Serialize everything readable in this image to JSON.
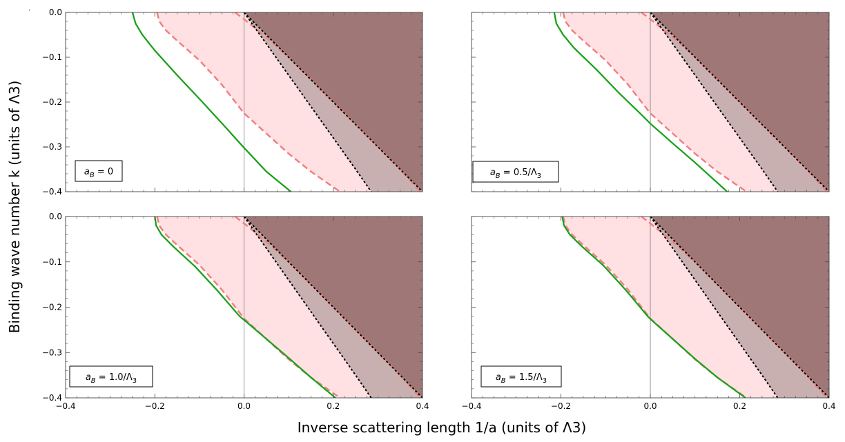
{
  "figure": {
    "xlabel": "Inverse scattering length 1/a (units of Λ3)",
    "ylabel": "Binding wave number k (units of Λ3)",
    "stray_mark": "ᵣ"
  },
  "colors": {
    "green_curve": "#1aa11a",
    "salmon_dashed": "#f08080",
    "pink_band": "#ffe0e3",
    "dark_region": "#9f7777",
    "mid_region": "#c8b0b0",
    "dotted": "#000000"
  },
  "chart_data": [
    {
      "type": "area",
      "panel": "top-left",
      "legend": "a_B = 0",
      "legend_parts": [
        "a",
        "B",
        " = 0"
      ],
      "xlim": [
        -0.4,
        0.4
      ],
      "ylim": [
        -0.4,
        0.0
      ],
      "xticks": [
        "−0.4",
        "−0.2",
        "0.0",
        "0.2",
        "0.4"
      ],
      "yticks": [
        "0.0",
        "−0.1",
        "−0.2",
        "−0.3",
        "−0.4"
      ],
      "show_xticklabels": false,
      "show_yticklabels": true,
      "green_curve": {
        "x": [
          -0.25,
          -0.243,
          -0.228,
          -0.2,
          -0.15,
          -0.1,
          -0.05,
          0.0,
          0.05,
          0.105
        ],
        "y": [
          0.0,
          -0.025,
          -0.05,
          -0.085,
          -0.14,
          -0.193,
          -0.247,
          -0.302,
          -0.355,
          -0.4
        ]
      },
      "salmon_outer": {
        "x": [
          -0.195,
          -0.19,
          -0.175,
          -0.15,
          -0.1,
          -0.05,
          0.0,
          0.05,
          0.1,
          0.15,
          0.215
        ],
        "y": [
          0.0,
          -0.02,
          -0.04,
          -0.063,
          -0.107,
          -0.161,
          -0.225,
          -0.27,
          -0.315,
          -0.355,
          -0.4
        ]
      },
      "salmon_inner": {
        "x": [
          -0.02,
          0.0,
          0.05,
          0.1,
          0.15,
          0.2,
          0.25,
          0.3,
          0.35,
          0.395
        ],
        "y": [
          0.0,
          -0.015,
          -0.055,
          -0.1,
          -0.15,
          -0.2,
          -0.25,
          -0.3,
          -0.35,
          -0.4
        ]
      },
      "dotted_steep": {
        "x": [
          0.0,
          0.05,
          0.1,
          0.15,
          0.2,
          0.25,
          0.285
        ],
        "y": [
          0.0,
          -0.07,
          -0.14,
          -0.21,
          -0.28,
          -0.35,
          -0.4
        ]
      },
      "dotted_diag": {
        "x": [
          0.0,
          0.1,
          0.2,
          0.3,
          0.4
        ],
        "y": [
          0.0,
          -0.1,
          -0.2,
          -0.3,
          -0.4
        ]
      }
    },
    {
      "type": "area",
      "panel": "top-right",
      "legend": "a_B = 0.5/Λ3",
      "legend_parts": [
        "a",
        "B",
        " = 0.5/Λ",
        "3"
      ],
      "xlim": [
        -0.4,
        0.4
      ],
      "ylim": [
        -0.4,
        0.0
      ],
      "xticks": [
        "−0.4",
        "−0.2",
        "0.0",
        "0.2",
        "0.4"
      ],
      "yticks": [
        "0.0",
        "−0.1",
        "−0.2",
        "−0.3",
        "−0.4"
      ],
      "show_xticklabels": false,
      "show_yticklabels": false,
      "green_curve": {
        "x": [
          -0.215,
          -0.21,
          -0.195,
          -0.17,
          -0.12,
          -0.07,
          -0.02,
          0.0,
          0.05,
          0.1,
          0.172
        ],
        "y": [
          0.0,
          -0.025,
          -0.05,
          -0.08,
          -0.128,
          -0.18,
          -0.228,
          -0.248,
          -0.292,
          -0.335,
          -0.4
        ]
      },
      "salmon_outer": {
        "x": [
          -0.195,
          -0.19,
          -0.175,
          -0.15,
          -0.1,
          -0.05,
          0.0,
          0.05,
          0.1,
          0.15,
          0.215
        ],
        "y": [
          0.0,
          -0.02,
          -0.04,
          -0.063,
          -0.107,
          -0.161,
          -0.225,
          -0.27,
          -0.315,
          -0.355,
          -0.4
        ]
      },
      "salmon_inner": {
        "x": [
          -0.02,
          0.0,
          0.05,
          0.1,
          0.15,
          0.2,
          0.25,
          0.3,
          0.35,
          0.395
        ],
        "y": [
          0.0,
          -0.015,
          -0.055,
          -0.1,
          -0.15,
          -0.2,
          -0.25,
          -0.3,
          -0.35,
          -0.4
        ]
      },
      "dotted_steep": {
        "x": [
          0.0,
          0.05,
          0.1,
          0.15,
          0.2,
          0.25,
          0.285
        ],
        "y": [
          0.0,
          -0.07,
          -0.14,
          -0.21,
          -0.28,
          -0.35,
          -0.4
        ]
      },
      "dotted_diag": {
        "x": [
          0.0,
          0.1,
          0.2,
          0.3,
          0.4
        ],
        "y": [
          0.0,
          -0.1,
          -0.2,
          -0.3,
          -0.4
        ]
      }
    },
    {
      "type": "area",
      "panel": "bottom-left",
      "legend": "a_B = 1.0/Λ3",
      "legend_parts": [
        "a",
        "B",
        " = 1.0/Λ",
        "3"
      ],
      "xlim": [
        -0.4,
        0.4
      ],
      "ylim": [
        -0.4,
        0.0
      ],
      "xticks": [
        "−0.4",
        "−0.2",
        "0.0",
        "0.2",
        "0.4"
      ],
      "yticks": [
        "0.0",
        "−0.1",
        "−0.2",
        "−0.3",
        "−0.4"
      ],
      "show_xticklabels": true,
      "show_yticklabels": true,
      "green_curve": {
        "x": [
          -0.2,
          -0.197,
          -0.185,
          -0.16,
          -0.11,
          -0.06,
          -0.01,
          0.0,
          0.05,
          0.1,
          0.15,
          0.205
        ],
        "y": [
          0.0,
          -0.02,
          -0.04,
          -0.065,
          -0.11,
          -0.163,
          -0.22,
          -0.228,
          -0.27,
          -0.312,
          -0.355,
          -0.4
        ]
      },
      "salmon_outer": {
        "x": [
          -0.195,
          -0.19,
          -0.175,
          -0.15,
          -0.1,
          -0.05,
          0.0,
          0.05,
          0.1,
          0.15,
          0.215
        ],
        "y": [
          0.0,
          -0.02,
          -0.04,
          -0.063,
          -0.107,
          -0.161,
          -0.225,
          -0.27,
          -0.315,
          -0.355,
          -0.4
        ]
      },
      "salmon_inner": {
        "x": [
          -0.02,
          0.0,
          0.05,
          0.1,
          0.15,
          0.2,
          0.25,
          0.3,
          0.35,
          0.395
        ],
        "y": [
          0.0,
          -0.015,
          -0.055,
          -0.1,
          -0.15,
          -0.2,
          -0.25,
          -0.3,
          -0.35,
          -0.4
        ]
      },
      "dotted_steep": {
        "x": [
          0.0,
          0.05,
          0.1,
          0.15,
          0.2,
          0.25,
          0.285
        ],
        "y": [
          0.0,
          -0.07,
          -0.14,
          -0.21,
          -0.28,
          -0.35,
          -0.4
        ]
      },
      "dotted_diag": {
        "x": [
          0.0,
          0.1,
          0.2,
          0.3,
          0.4
        ],
        "y": [
          0.0,
          -0.1,
          -0.2,
          -0.3,
          -0.4
        ]
      }
    },
    {
      "type": "area",
      "panel": "bottom-right",
      "legend": "a_B = 1.5/Λ3",
      "legend_parts": [
        "a",
        "B",
        " = 1.5/Λ",
        "3"
      ],
      "xlim": [
        -0.4,
        0.4
      ],
      "ylim": [
        -0.4,
        0.0
      ],
      "xticks": [
        "−0.4",
        "−0.2",
        "0.0",
        "0.2",
        "0.4"
      ],
      "yticks": [
        "0.0",
        "−0.1",
        "−0.2",
        "−0.3",
        "−0.4"
      ],
      "show_xticklabels": true,
      "show_yticklabels": false,
      "green_curve": {
        "x": [
          -0.197,
          -0.193,
          -0.18,
          -0.155,
          -0.105,
          -0.055,
          -0.005,
          0.0,
          0.05,
          0.1,
          0.15,
          0.213
        ],
        "y": [
          0.0,
          -0.02,
          -0.04,
          -0.064,
          -0.108,
          -0.162,
          -0.221,
          -0.226,
          -0.27,
          -0.314,
          -0.355,
          -0.4
        ]
      },
      "salmon_outer": {
        "x": [
          -0.195,
          -0.19,
          -0.175,
          -0.15,
          -0.1,
          -0.05,
          0.0,
          0.05,
          0.1,
          0.15,
          0.215
        ],
        "y": [
          0.0,
          -0.02,
          -0.04,
          -0.063,
          -0.107,
          -0.161,
          -0.225,
          -0.27,
          -0.315,
          -0.355,
          -0.4
        ]
      },
      "salmon_inner": {
        "x": [
          -0.02,
          0.0,
          0.05,
          0.1,
          0.15,
          0.2,
          0.25,
          0.3,
          0.35,
          0.395
        ],
        "y": [
          0.0,
          -0.015,
          -0.055,
          -0.1,
          -0.15,
          -0.2,
          -0.25,
          -0.3,
          -0.35,
          -0.4
        ]
      },
      "dotted_steep": {
        "x": [
          0.0,
          0.05,
          0.1,
          0.15,
          0.2,
          0.25,
          0.285
        ],
        "y": [
          0.0,
          -0.07,
          -0.14,
          -0.21,
          -0.28,
          -0.35,
          -0.4
        ]
      },
      "dotted_diag": {
        "x": [
          0.0,
          0.1,
          0.2,
          0.3,
          0.4
        ],
        "y": [
          0.0,
          -0.1,
          -0.2,
          -0.3,
          -0.4
        ]
      }
    }
  ]
}
